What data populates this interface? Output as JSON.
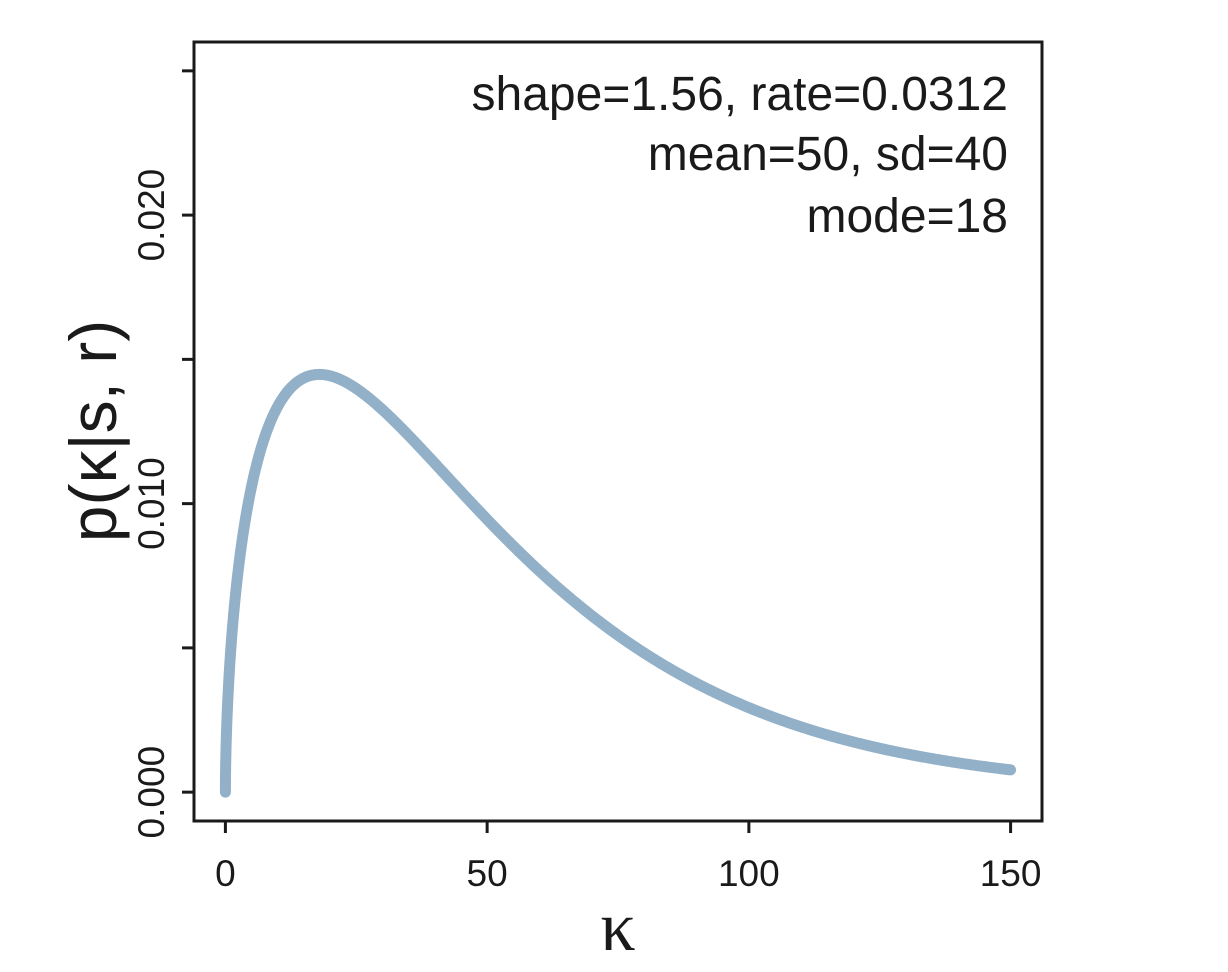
{
  "chart_data": {
    "type": "line",
    "xlabel": "κ",
    "ylabel": "p(κ|s, r)",
    "xlim": [
      -6,
      156
    ],
    "ylim": [
      -0.001,
      0.026
    ],
    "x_ticks": [
      0,
      50,
      100,
      150
    ],
    "x_tick_labels": [
      "0",
      "50",
      "100",
      "150"
    ],
    "y_ticks_major": [
      0.0,
      0.01,
      0.02
    ],
    "y_tick_labels": [
      "0.000",
      "0.010",
      "0.020"
    ],
    "y_ticks_minor": [
      0.005,
      0.015,
      0.025
    ],
    "annotations": [
      "shape=1.56, rate=0.0312",
      "mean=50, sd=40",
      "mode=18"
    ],
    "grid": false,
    "line_color": "#92b0c8",
    "series": [
      {
        "distribution": "gamma",
        "shape": 1.56,
        "rate": 0.0312,
        "x_range": [
          0,
          150
        ],
        "points": [
          [
            0,
            0.0
          ],
          [
            1,
            0.0057
          ],
          [
            2,
            0.0079
          ],
          [
            5,
            0.0111
          ],
          [
            10,
            0.0135
          ],
          [
            18,
            0.0144
          ],
          [
            25,
            0.0139
          ],
          [
            30,
            0.0131
          ],
          [
            40,
            0.0113
          ],
          [
            50,
            0.0091
          ],
          [
            60,
            0.0072
          ],
          [
            75,
            0.0049
          ],
          [
            100,
            0.0023
          ],
          [
            125,
            0.0013
          ],
          [
            150,
            0.0007
          ]
        ]
      }
    ]
  }
}
